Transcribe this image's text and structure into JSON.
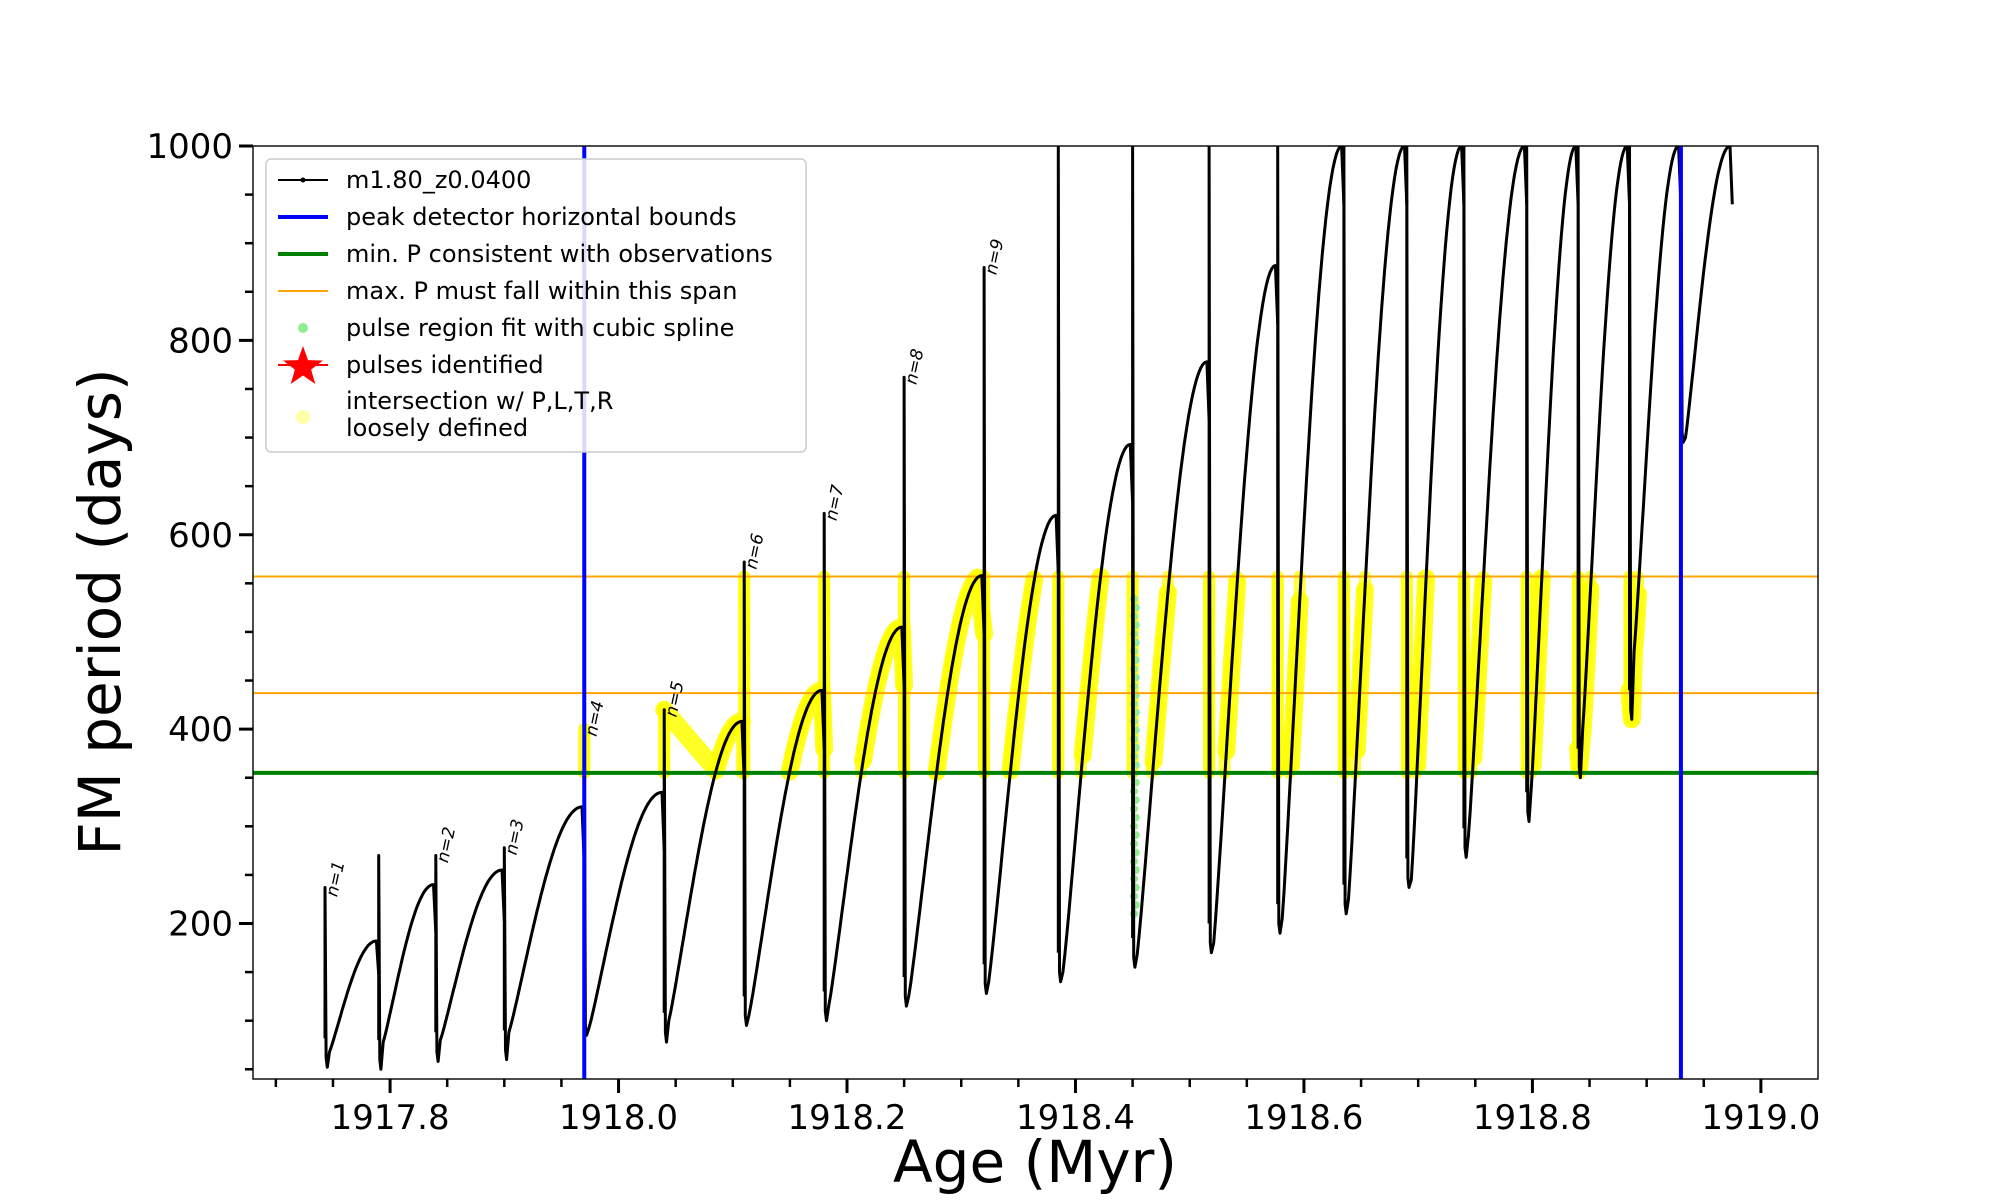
{
  "chart_data": {
    "type": "line",
    "title": "",
    "xlabel": "Age (Myr)",
    "ylabel": "FM period (days)",
    "xlim": [
      1917.68,
      1919.05
    ],
    "ylim": [
      40,
      1000
    ],
    "xticks": [
      1917.8,
      1918.0,
      1918.2,
      1918.4,
      1918.6,
      1918.8,
      1919.0
    ],
    "xtick_labels": [
      "1917.8",
      "1918.0",
      "1918.2",
      "1918.4",
      "1918.6",
      "1918.8",
      "1919.0"
    ],
    "yticks": [
      200,
      400,
      600,
      800,
      1000
    ],
    "ytick_labels": [
      "200",
      "400",
      "600",
      "800",
      "1000"
    ],
    "colors": {
      "track": "#000000",
      "peak_bounds": "#0000ff",
      "min_period": "#008000",
      "max_period_span": "#ffa500",
      "spline_fit": "#90ee90",
      "pulses_identified": "#ff0000",
      "intersection": "#ffff00"
    },
    "legend": {
      "location": "upper-left",
      "entries": [
        {
          "label": "m1.80_z0.0400",
          "marker": "line-dot"
        },
        {
          "label": "peak detector horizontal bounds",
          "marker": "blue-line"
        },
        {
          "label": "min. P consistent with observations",
          "marker": "green-line"
        },
        {
          "label": "max. P must fall within this span",
          "marker": "orange-line"
        },
        {
          "label": "pulse region fit with cubic spline",
          "marker": "green-dot"
        },
        {
          "label": "pulses identified",
          "marker": "red-star"
        },
        {
          "label": "intersection w/ P,L,T,R",
          "label2": "loosely defined",
          "marker": "yellow-dot"
        }
      ]
    },
    "vertical_lines": [
      1917.97,
      1918.93
    ],
    "horizontal_lines": {
      "min_period": 355,
      "max_period_span": [
        437,
        557
      ]
    },
    "pulse_labels": [
      {
        "label": "n=1",
        "x": 1917.743,
        "y": 235
      },
      {
        "label": "n=2",
        "x": 1917.84,
        "y": 270
      },
      {
        "label": "n=3",
        "x": 1917.9,
        "y": 278
      },
      {
        "label": "n=4",
        "x": 1917.97,
        "y": 400
      },
      {
        "label": "n=5",
        "x": 1918.04,
        "y": 420
      },
      {
        "label": "n=6",
        "x": 1918.11,
        "y": 572
      },
      {
        "label": "n=7",
        "x": 1918.18,
        "y": 622
      },
      {
        "label": "n=8",
        "x": 1918.25,
        "y": 762
      },
      {
        "label": "n=9",
        "x": 1918.32,
        "y": 875
      }
    ],
    "cycles": [
      {
        "start": 1917.743,
        "end": 1917.79,
        "min": 68,
        "max": 182,
        "spike": 237,
        "dip": 52
      },
      {
        "start": 1917.79,
        "end": 1917.84,
        "min": 78,
        "max": 240,
        "spike": 270,
        "dip": 50
      },
      {
        "start": 1917.84,
        "end": 1917.9,
        "min": 80,
        "max": 255,
        "spike": 270,
        "dip": 58
      },
      {
        "start": 1917.9,
        "end": 1917.97,
        "min": 88,
        "max": 320,
        "spike": 278,
        "dip": 60
      },
      {
        "start": 1917.97,
        "end": 1918.04,
        "min": 92,
        "max": 335,
        "spike": 400,
        "dip": 85
      },
      {
        "start": 1918.04,
        "end": 1918.11,
        "min": 100,
        "max": 408,
        "spike": 420,
        "dip": 78
      },
      {
        "start": 1918.11,
        "end": 1918.18,
        "min": 105,
        "max": 440,
        "spike": 572,
        "dip": 95
      },
      {
        "start": 1918.18,
        "end": 1918.25,
        "min": 115,
        "max": 505,
        "spike": 622,
        "dip": 100
      },
      {
        "start": 1918.25,
        "end": 1918.32,
        "min": 125,
        "max": 558,
        "spike": 762,
        "dip": 115
      },
      {
        "start": 1918.32,
        "end": 1918.385,
        "min": 140,
        "max": 620,
        "spike": 875,
        "dip": 128
      },
      {
        "start": 1918.385,
        "end": 1918.45,
        "min": 150,
        "max": 693,
        "spike": 1000,
        "dip": 140
      },
      {
        "start": 1918.45,
        "end": 1918.517,
        "min": 168,
        "max": 778,
        "spike": 1000,
        "dip": 155
      },
      {
        "start": 1918.517,
        "end": 1918.577,
        "min": 180,
        "max": 877,
        "spike": 1000,
        "dip": 170
      },
      {
        "start": 1918.577,
        "end": 1918.635,
        "min": 205,
        "max": 1000,
        "spike": 1000,
        "dip": 190
      },
      {
        "start": 1918.635,
        "end": 1918.69,
        "min": 225,
        "max": 1000,
        "spike": 1000,
        "dip": 210
      },
      {
        "start": 1918.69,
        "end": 1918.74,
        "min": 245,
        "max": 1000,
        "spike": 1000,
        "dip": 237
      },
      {
        "start": 1918.74,
        "end": 1918.795,
        "min": 290,
        "max": 1000,
        "spike": 1000,
        "dip": 268
      },
      {
        "start": 1918.795,
        "end": 1918.84,
        "min": 340,
        "max": 1000,
        "spike": 1000,
        "dip": 305
      },
      {
        "start": 1918.84,
        "end": 1918.885,
        "min": 400,
        "max": 1000,
        "spike": 1000,
        "dip": 350
      },
      {
        "start": 1918.885,
        "end": 1918.93,
        "min": 480,
        "max": 1000,
        "spike": 1000,
        "dip": 410
      },
      {
        "start": 1918.93,
        "end": 1918.975,
        "min": 700,
        "max": 1000,
        "spike": 1000,
        "dip": 695
      }
    ]
  }
}
